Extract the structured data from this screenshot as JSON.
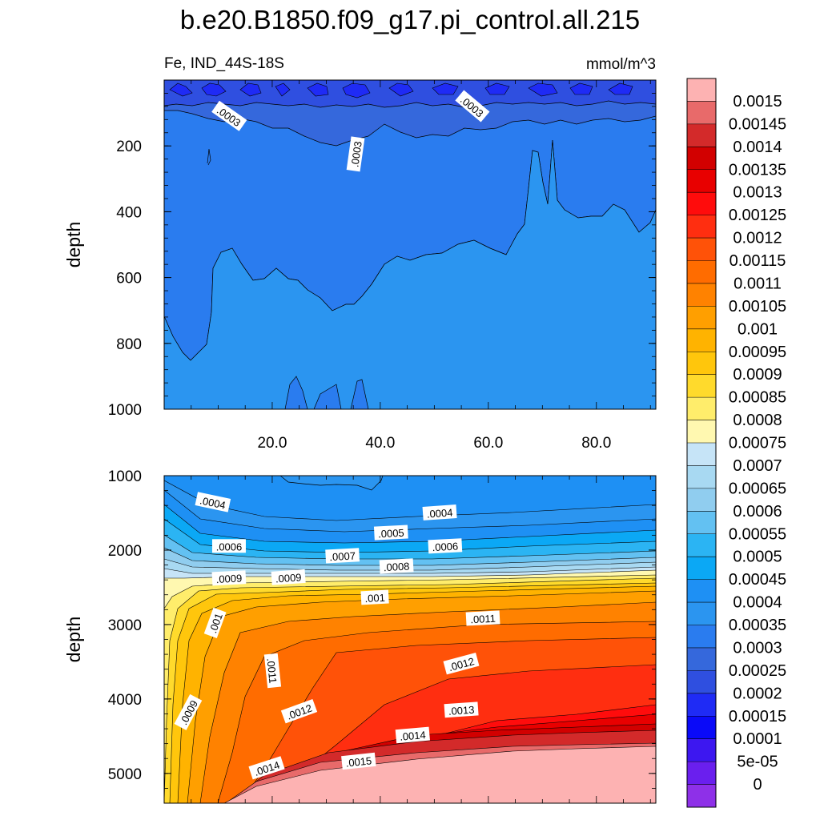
{
  "chart_data": [
    {
      "type": "heatmap",
      "subtype": "filled-contour",
      "panel": "upper",
      "title": "b.e20.B1850.f09_g17.pi_control.all.215",
      "left_label": "Fe, IND_44S-18S",
      "right_label": "mmol/m^3",
      "ylabel": "depth",
      "xlabel": "",
      "xlim": [
        0,
        91
      ],
      "ylim": [
        0,
        1000
      ],
      "y_reversed": true,
      "x_ticks": [
        20,
        40,
        60,
        80
      ],
      "x_tick_labels": [
        "20.0",
        "40.0",
        "60.0",
        "80.0"
      ],
      "y_ticks": [
        200,
        400,
        600,
        800,
        1000
      ],
      "y_tick_labels": [
        "200",
        "400",
        "600",
        "800",
        "1000"
      ],
      "contour_labels": [
        {
          "text": ".0003",
          "x": 12,
          "y": 110
        },
        {
          "text": ".0003",
          "x": 35.5,
          "y": 225
        },
        {
          "text": ".0003",
          "x": 57,
          "y": 80
        }
      ],
      "dominant_values": {
        "0-80m": 0.00025,
        "80-450m": 0.0003,
        "450-1000m": 0.00035
      }
    },
    {
      "type": "heatmap",
      "subtype": "filled-contour",
      "panel": "lower",
      "ylabel": "depth",
      "xlim": [
        0,
        91
      ],
      "ylim": [
        1000,
        5400
      ],
      "y_reversed": true,
      "y_ticks": [
        1000,
        2000,
        3000,
        4000,
        5000
      ],
      "y_tick_labels": [
        "1000",
        "2000",
        "3000",
        "4000",
        "5000"
      ],
      "contour_labels": [
        {
          "text": ".0004",
          "x": 9,
          "y": 1360
        },
        {
          "text": ".0004",
          "x": 51,
          "y": 1500
        },
        {
          "text": ".0005",
          "x": 42,
          "y": 1770
        },
        {
          "text": ".0006",
          "x": 12,
          "y": 1950
        },
        {
          "text": ".0006",
          "x": 52,
          "y": 1950
        },
        {
          "text": ".0007",
          "x": 33,
          "y": 2080
        },
        {
          "text": ".0008",
          "x": 43,
          "y": 2220
        },
        {
          "text": ".0009",
          "x": 12,
          "y": 2380
        },
        {
          "text": ".0009",
          "x": 23,
          "y": 2370
        },
        {
          "text": ".001",
          "x": 39,
          "y": 2640
        },
        {
          "text": ".001",
          "x": 9.5,
          "y": 2980
        },
        {
          "text": ".0011",
          "x": 59,
          "y": 2920
        },
        {
          "text": ".0011",
          "x": 20,
          "y": 3620
        },
        {
          "text": ".0012",
          "x": 55,
          "y": 3530
        },
        {
          "text": ".0012",
          "x": 25,
          "y": 4170
        },
        {
          "text": ".0013",
          "x": 55,
          "y": 4150
        },
        {
          "text": ".0014",
          "x": 46,
          "y": 4490
        },
        {
          "text": ".0014",
          "x": 19,
          "y": 4930
        },
        {
          "text": ".0015",
          "x": 36,
          "y": 4840
        },
        {
          "text": ".0009",
          "x": 4.5,
          "y": 4180
        }
      ]
    }
  ],
  "colorbar": {
    "levels": [
      "0.0015",
      "0.00145",
      "0.0014",
      "0.00135",
      "0.0013",
      "0.00125",
      "0.0012",
      "0.00115",
      "0.0011",
      "0.00105",
      "0.001",
      "0.00095",
      "0.0009",
      "0.00085",
      "0.0008",
      "0.00075",
      "0.0007",
      "0.00065",
      "0.0006",
      "0.00055",
      "0.0005",
      "0.00045",
      "0.0004",
      "0.00035",
      "0.0003",
      "0.00025",
      "0.0002",
      "0.00015",
      "0.0001",
      "5e-05",
      "0"
    ],
    "colors": [
      "#FDB2B2",
      "#E86A6A",
      "#D32A2A",
      "#D20000",
      "#E80000",
      "#FF0C0C",
      "#FF2E10",
      "#FF5208",
      "#FF6C00",
      "#FF8200",
      "#FF9F00",
      "#FFB300",
      "#FFC60C",
      "#FFDA2C",
      "#FFED6B",
      "#FFF8B0",
      "#C6E4F7",
      "#A8D9F2",
      "#90CDEF",
      "#63C1F2",
      "#2BB4F3",
      "#0BA8F5",
      "#1E90F4",
      "#2B95F0",
      "#2A7CEF",
      "#3568DC",
      "#2F4FE0",
      "#1F2BF5",
      "#0A0AF8",
      "#3D17F0",
      "#6A1FEE",
      "#8E30E8"
    ]
  }
}
